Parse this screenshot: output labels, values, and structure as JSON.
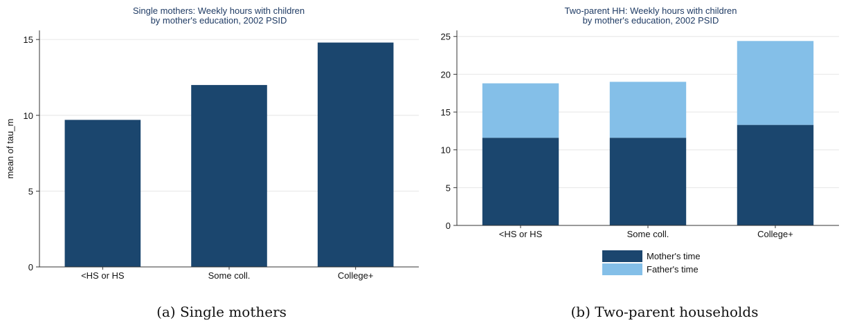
{
  "chart_data": [
    {
      "type": "bar",
      "title": "Single mothers: Weekly hours with children",
      "subtitle": "by mother's education, 2002 PSID",
      "xlabel": "",
      "ylabel": "mean of tau_m",
      "categories": [
        "<HS or HS",
        "Some coll.",
        "College+"
      ],
      "values": [
        9.7,
        12.0,
        14.8
      ],
      "ylim": [
        0,
        15.6
      ],
      "yticks": [
        0,
        5,
        10,
        15
      ],
      "grid": true,
      "colors": [
        "#1b466e"
      ]
    },
    {
      "type": "bar",
      "stacked": true,
      "title": "Two-parent HH: Weekly hours with children",
      "subtitle": "by mother's education, 2002 PSID",
      "xlabel": "",
      "ylabel": "",
      "categories": [
        "<HS or HS",
        "Some coll.",
        "College+"
      ],
      "series": [
        {
          "name": "Mother's  time",
          "values": [
            11.6,
            11.6,
            13.3
          ],
          "color": "#1b466e"
        },
        {
          "name": "Father's  time",
          "values": [
            7.2,
            7.4,
            11.1
          ],
          "color": "#84bfe8"
        }
      ],
      "ylim": [
        0,
        25.8
      ],
      "yticks": [
        0,
        5,
        10,
        15,
        20,
        25
      ],
      "grid": true,
      "legend": "bottom"
    }
  ],
  "captions": [
    "(a) Single mothers",
    "(b) Two-parent households"
  ]
}
